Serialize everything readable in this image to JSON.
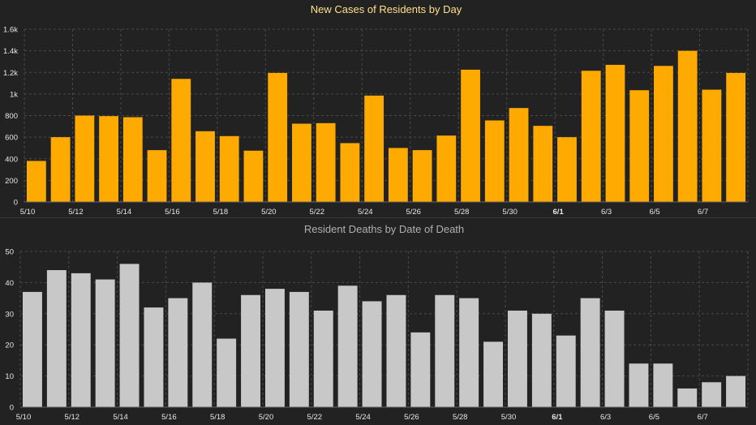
{
  "colors": {
    "background": "#222222",
    "grid": "#4a4a4a",
    "axis_text": "#e6e6e6",
    "cases_bar": "#ffaa00",
    "deaths_bar": "#c8c8c8",
    "cases_title": "#ffe08a",
    "deaths_title": "#b0b0b0"
  },
  "chart_data": [
    {
      "type": "bar",
      "title": "New Cases of Residents by Day",
      "categories": [
        "5/10",
        "5/11",
        "5/12",
        "5/13",
        "5/14",
        "5/15",
        "5/16",
        "5/17",
        "5/18",
        "5/19",
        "5/20",
        "5/21",
        "5/22",
        "5/23",
        "5/24",
        "5/25",
        "5/26",
        "5/27",
        "5/28",
        "5/29",
        "5/30",
        "5/31",
        "6/1",
        "6/2",
        "6/3",
        "6/4",
        "6/5",
        "6/6",
        "6/7",
        "6/8"
      ],
      "tick_labels": [
        "5/10",
        "5/12",
        "5/14",
        "5/16",
        "5/18",
        "5/20",
        "5/22",
        "5/24",
        "5/26",
        "5/28",
        "5/30",
        "6/1",
        "6/3",
        "6/5",
        "6/7"
      ],
      "bold_tick": "6/1",
      "y_tick_labels": [
        "0",
        "200",
        "400",
        "600",
        "800",
        "1k",
        "1.2k",
        "1.4k",
        "1.6k"
      ],
      "values": [
        380,
        600,
        800,
        795,
        785,
        480,
        1140,
        655,
        610,
        475,
        1195,
        725,
        730,
        545,
        985,
        500,
        480,
        615,
        1225,
        755,
        870,
        705,
        600,
        1215,
        1270,
        1035,
        1260,
        1400,
        1040,
        1195
      ],
      "ylim": [
        0,
        1600
      ],
      "grid": true,
      "xlabel": "",
      "ylabel": ""
    },
    {
      "type": "bar",
      "title": "Resident Deaths by Date of Death",
      "categories": [
        "5/10",
        "5/11",
        "5/12",
        "5/13",
        "5/14",
        "5/15",
        "5/16",
        "5/17",
        "5/18",
        "5/19",
        "5/20",
        "5/21",
        "5/22",
        "5/23",
        "5/24",
        "5/25",
        "5/26",
        "5/27",
        "5/28",
        "5/29",
        "5/30",
        "5/31",
        "6/1",
        "6/2",
        "6/3",
        "6/4",
        "6/5",
        "6/6",
        "6/7",
        "6/8"
      ],
      "tick_labels": [
        "5/10",
        "5/12",
        "5/14",
        "5/16",
        "5/18",
        "5/20",
        "5/22",
        "5/24",
        "5/26",
        "5/28",
        "5/30",
        "6/1",
        "6/3",
        "6/5",
        "6/7"
      ],
      "bold_tick": "6/1",
      "y_tick_labels": [
        "0",
        "10",
        "20",
        "30",
        "40",
        "50"
      ],
      "values": [
        37,
        44,
        43,
        41,
        46,
        32,
        35,
        40,
        22,
        36,
        38,
        37,
        31,
        39,
        34,
        36,
        24,
        36,
        35,
        21,
        31,
        30,
        23,
        35,
        31,
        14,
        14,
        6,
        8,
        10
      ],
      "ylim": [
        0,
        50
      ],
      "grid": true,
      "xlabel": "",
      "ylabel": ""
    }
  ]
}
